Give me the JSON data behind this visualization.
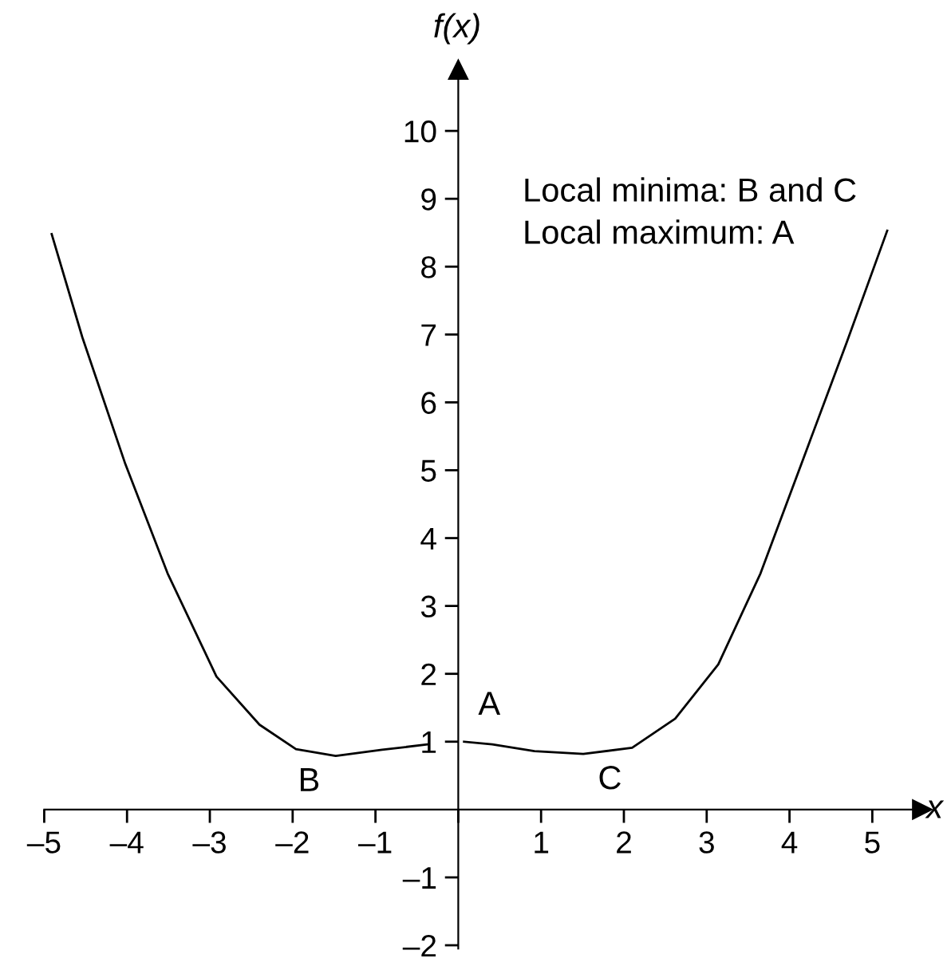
{
  "chart_data": {
    "type": "line",
    "xlabel": "x",
    "ylabel": "f(x)",
    "xlim": [
      -5,
      5.6
    ],
    "ylim": [
      -2.05,
      10.9
    ],
    "xticks": [
      {
        "value": -5,
        "label": "–5"
      },
      {
        "value": -4,
        "label": "–4"
      },
      {
        "value": -3,
        "label": "–3"
      },
      {
        "value": -2,
        "label": "–2"
      },
      {
        "value": -1,
        "label": "–1"
      },
      {
        "value": 0,
        "label": null
      },
      1,
      2,
      3,
      4,
      5
    ],
    "yticks": [
      {
        "value": -2,
        "label": "–2"
      },
      {
        "value": -1,
        "label": "–1"
      },
      1,
      2,
      3,
      4,
      5,
      6,
      7,
      8,
      9,
      10
    ],
    "x": [
      -4.91,
      -4.54,
      -4.02,
      -3.51,
      -2.92,
      -2.4,
      -1.96,
      -1.48,
      -0.92,
      -0.37,
      -0.15,
      0.07,
      0.41,
      0.92,
      1.51,
      2.1,
      2.62,
      3.14,
      3.65,
      4.17,
      4.69,
      5.18
    ],
    "series": [
      {
        "color": "#000000",
        "values": [
          8.48,
          6.96,
          5.09,
          3.48,
          1.96,
          1.25,
          0.89,
          0.79,
          0.88,
          0.96,
          null,
          1.0,
          0.96,
          0.86,
          0.82,
          0.91,
          1.34,
          2.14,
          3.48,
          5.18,
          6.88,
          8.53
        ]
      }
    ],
    "annotations": [
      "Local minima: B and C",
      "Local maximum: A",
      {
        "text": "A",
        "x": 0,
        "y": 1
      },
      {
        "text": "B",
        "x": -1.48,
        "y": 0.79
      },
      {
        "text": "C",
        "x": 1.51,
        "y": 0.82
      }
    ],
    "grid": false,
    "marker": "none",
    "line_style": "solid"
  }
}
